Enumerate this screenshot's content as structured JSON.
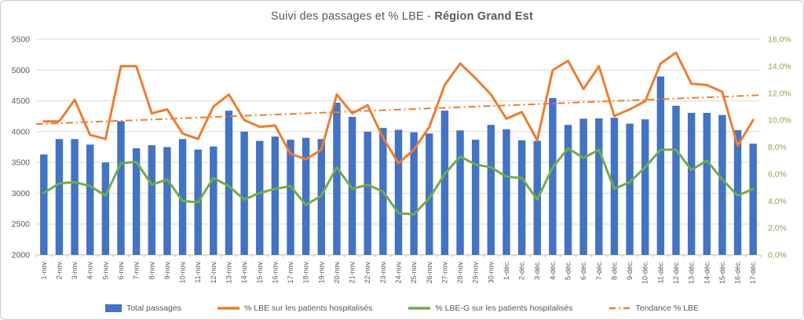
{
  "title": {
    "prefix": "Suivi des passages et % LBE - ",
    "bold": "Région Grand Est"
  },
  "colors": {
    "bar": "#4472C4",
    "lbe_line": "#ED7D31",
    "lbeg_line": "#70AD47",
    "trend_line": "#ED7D31",
    "left_axis_text": "#595959",
    "right_axis_text": "#94A14E",
    "x_axis_text": "#595959",
    "gridline": "#d9d9d9",
    "axis_line": "#bfbfbf",
    "title_text": "#595959"
  },
  "legend": [
    {
      "label": "Total passages",
      "type": "bar",
      "color": "#4472C4"
    },
    {
      "label": "% LBE sur les patients hospitalisés",
      "type": "line",
      "color": "#ED7D31"
    },
    {
      "label": "% LBE-G sur les patients hospitalisés",
      "type": "line",
      "color": "#70AD47"
    },
    {
      "label": "Tendance % LBE",
      "type": "dashdot",
      "color": "#ED7D31"
    }
  ],
  "chart_data": {
    "type": "bar",
    "title": "Suivi des passages et % LBE - Région Grand Est",
    "grid": true,
    "legend_position": "bottom",
    "categories": [
      "1-nov.",
      "2-nov.",
      "3-nov.",
      "4-nov.",
      "5-nov.",
      "6-nov.",
      "7-nov.",
      "8-nov.",
      "9-nov.",
      "10-nov.",
      "11-nov.",
      "12-nov.",
      "13-nov.",
      "14-nov.",
      "15-nov.",
      "16-nov.",
      "17-nov.",
      "18-nov.",
      "19-nov.",
      "20-nov.",
      "21-nov.",
      "22-nov.",
      "23-nov.",
      "24-nov.",
      "25-nov.",
      "26-nov.",
      "27-nov.",
      "28-nov.",
      "29-nov.",
      "30-nov.",
      "1-déc.",
      "2-déc.",
      "3-déc.",
      "4-déc.",
      "5-déc.",
      "6-déc.",
      "7-déc.",
      "8-déc.",
      "9-déc.",
      "10-déc.",
      "11-déc.",
      "12-déc.",
      "13-déc.",
      "14-déc.",
      "15-déc.",
      "16-déc.",
      "17-déc."
    ],
    "left_axis": {
      "min": 2000,
      "max": 5500,
      "step": 500,
      "labels": [
        "2000",
        "2500",
        "3000",
        "3500",
        "4000",
        "4500",
        "5000",
        "5500"
      ]
    },
    "right_axis": {
      "min": 0,
      "max": 16,
      "step": 2,
      "labels": [
        "0,0%",
        "2,0%",
        "4,0%",
        "6,0%",
        "8,0%",
        "10,0%",
        "12,0%",
        "14,0%",
        "16,0%"
      ]
    },
    "series": [
      {
        "name": "Total passages",
        "type": "bar",
        "axis": "left",
        "color": "#4472C4",
        "values": [
          3630,
          3880,
          3880,
          3790,
          3500,
          4170,
          3730,
          3780,
          3750,
          3880,
          3710,
          3760,
          4340,
          4000,
          3850,
          3920,
          3870,
          3900,
          3880,
          4470,
          4240,
          4000,
          4060,
          4030,
          3990,
          3970,
          4340,
          4020,
          3870,
          4110,
          4040,
          3860,
          3850,
          4545,
          4110,
          4210,
          4215,
          4225,
          4130,
          4200,
          4895,
          4420,
          4305,
          4305,
          4270,
          4025,
          3805
        ]
      },
      {
        "name": "% LBE sur les patients hospitalisés",
        "type": "line",
        "axis": "right",
        "color": "#ED7D31",
        "values": [
          9.9,
          9.9,
          11.5,
          8.9,
          8.6,
          14.0,
          14.0,
          10.5,
          10.8,
          9.0,
          8.6,
          11.0,
          11.9,
          10.0,
          9.5,
          9.6,
          7.5,
          7.1,
          7.8,
          11.9,
          10.5,
          11.1,
          8.7,
          6.8,
          7.8,
          9.5,
          12.6,
          14.2,
          13.1,
          11.9,
          10.1,
          10.6,
          8.5,
          13.7,
          14.4,
          12.3,
          14.0,
          10.3,
          10.8,
          11.4,
          14.2,
          15.0,
          12.7,
          12.6,
          12.1,
          8.1,
          10.0
        ]
      },
      {
        "name": "% LBE-G sur les patients hospitalisés",
        "type": "line",
        "axis": "right",
        "color": "#70AD47",
        "values": [
          4.6,
          5.3,
          5.4,
          5.1,
          4.4,
          6.8,
          6.9,
          5.2,
          5.6,
          4.0,
          3.9,
          5.7,
          5.1,
          4.1,
          4.6,
          4.9,
          5.1,
          3.7,
          4.4,
          6.5,
          4.9,
          5.2,
          4.7,
          3.1,
          3.0,
          4.2,
          6.0,
          7.3,
          6.7,
          6.5,
          5.8,
          5.7,
          4.1,
          6.5,
          7.9,
          7.2,
          7.8,
          4.9,
          5.4,
          6.5,
          7.8,
          7.8,
          6.3,
          7.0,
          5.6,
          4.4,
          4.9
        ]
      },
      {
        "name": "Tendance % LBE",
        "type": "trendline",
        "axis": "right",
        "color": "#ED7D31",
        "start": 9.7,
        "end": 11.85
      }
    ]
  }
}
